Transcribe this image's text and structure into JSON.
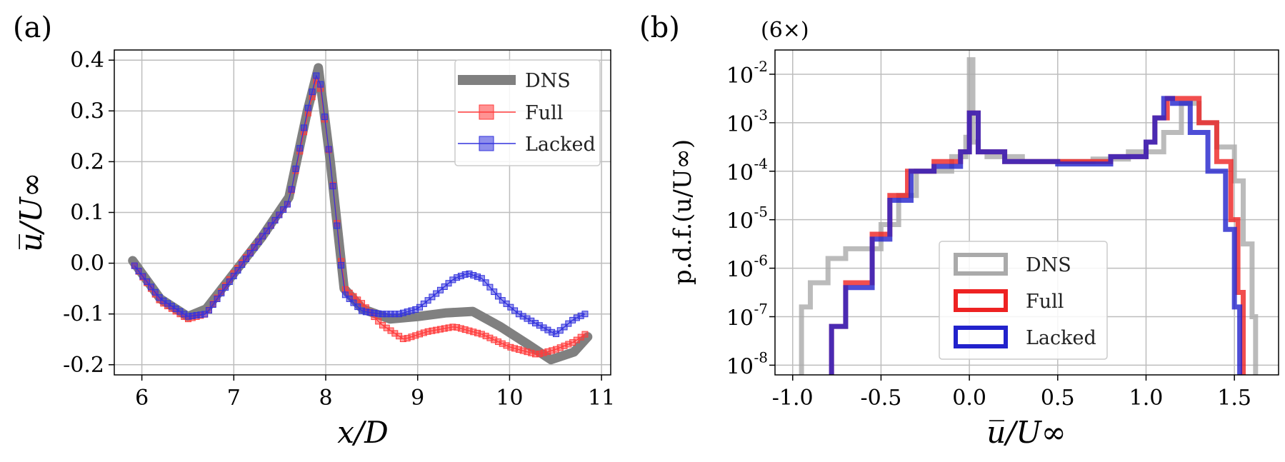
{
  "chart_data": [
    {
      "type": "line",
      "panel_label": "(a)",
      "xlabel": "x/D",
      "ylabel": "u̅/U∞",
      "xlim": [
        5.7,
        11.1
      ],
      "ylim": [
        -0.22,
        0.42
      ],
      "xticks": [
        6,
        7,
        8,
        9,
        10,
        11
      ],
      "xtick_labels": [
        "6",
        "7",
        "8",
        "9",
        "10",
        "11"
      ],
      "yticks": [
        -0.2,
        -0.1,
        0.0,
        0.1,
        0.2,
        0.3,
        0.4
      ],
      "ytick_labels": [
        "-0.2",
        "-0.1",
        "0.0",
        "0.1",
        "0.2",
        "0.3",
        "0.4"
      ],
      "grid": true,
      "legend_position": "top-right",
      "series": [
        {
          "name": "DNS",
          "color": "#808080",
          "style": "thick-line",
          "x": [
            5.9,
            6.2,
            6.5,
            6.7,
            7.0,
            7.3,
            7.6,
            7.8,
            7.92,
            8.05,
            8.2,
            8.4,
            8.7,
            9.0,
            9.3,
            9.6,
            9.9,
            10.2,
            10.45,
            10.7,
            10.85
          ],
          "y": [
            0.005,
            -0.07,
            -0.105,
            -0.09,
            -0.02,
            0.05,
            0.13,
            0.3,
            0.385,
            0.2,
            -0.05,
            -0.09,
            -0.11,
            -0.105,
            -0.098,
            -0.095,
            -0.125,
            -0.16,
            -0.19,
            -0.175,
            -0.145
          ]
        },
        {
          "name": "Full",
          "color": "#ff3b3b",
          "style": "square-markers",
          "x": [
            5.92,
            6.2,
            6.5,
            6.7,
            7.0,
            7.3,
            7.6,
            7.8,
            7.92,
            8.05,
            8.2,
            8.4,
            8.6,
            8.85,
            9.1,
            9.4,
            9.7,
            10.0,
            10.3,
            10.5,
            10.7,
            10.82
          ],
          "y": [
            -0.005,
            -0.075,
            -0.11,
            -0.1,
            -0.02,
            0.05,
            0.12,
            0.29,
            0.375,
            0.2,
            -0.05,
            -0.08,
            -0.12,
            -0.15,
            -0.135,
            -0.125,
            -0.14,
            -0.165,
            -0.18,
            -0.17,
            -0.155,
            -0.14
          ]
        },
        {
          "name": "Lacked",
          "color": "#3333dd",
          "style": "square-markers",
          "x": [
            5.92,
            6.2,
            6.5,
            6.7,
            7.0,
            7.3,
            7.6,
            7.8,
            7.92,
            8.05,
            8.2,
            8.4,
            8.6,
            8.8,
            9.0,
            9.2,
            9.4,
            9.55,
            9.7,
            9.9,
            10.1,
            10.3,
            10.5,
            10.6,
            10.7,
            10.82
          ],
          "y": [
            -0.005,
            -0.07,
            -0.105,
            -0.1,
            -0.025,
            0.05,
            0.12,
            0.3,
            0.385,
            0.2,
            -0.06,
            -0.095,
            -0.1,
            -0.1,
            -0.09,
            -0.06,
            -0.03,
            -0.02,
            -0.03,
            -0.07,
            -0.1,
            -0.12,
            -0.14,
            -0.125,
            -0.11,
            -0.1
          ]
        }
      ]
    },
    {
      "type": "line",
      "panel_label": "(b)",
      "annotation": "(6×)",
      "xlabel": "u̅/U∞",
      "ylabel": "p.d.f.(u/U∞)",
      "xlim": [
        -1.1,
        1.75
      ],
      "ylim_log10": [
        -8.2,
        -1.5
      ],
      "yscale": "log",
      "xticks": [
        -1.0,
        -0.5,
        0.0,
        0.5,
        1.0,
        1.5
      ],
      "xtick_labels": [
        "-1.0",
        "-0.5",
        "0.0",
        "0.5",
        "1.0",
        "1.5"
      ],
      "yticks_log10": [
        -8,
        -7,
        -6,
        -5,
        -4,
        -3,
        -2
      ],
      "ytick_labels": [
        "-8",
        "-7",
        "-6",
        "-5",
        "-4",
        "-3",
        "-2"
      ],
      "ytick_base": "10",
      "grid": true,
      "legend_position": "bottom-center",
      "series": [
        {
          "name": "DNS",
          "color": "#aaaaaa",
          "x": [
            -0.97,
            -0.95,
            -0.9,
            -0.8,
            -0.7,
            -0.5,
            -0.4,
            -0.3,
            -0.1,
            -0.02,
            0.0,
            0.02,
            0.05,
            0.1,
            0.3,
            0.5,
            0.7,
            0.9,
            1.1,
            1.2,
            1.3,
            1.4,
            1.5,
            1.55,
            1.6,
            1.62
          ],
          "log10_pdf": [
            -8.3,
            -6.8,
            -6.3,
            -5.8,
            -5.6,
            -5.1,
            -4.5,
            -4.0,
            -3.7,
            -3.3,
            -1.7,
            -3.4,
            -3.6,
            -3.7,
            -3.8,
            -3.8,
            -3.75,
            -3.6,
            -3.2,
            -2.6,
            -3.0,
            -3.5,
            -4.2,
            -5.5,
            -7.0,
            -8.3
          ]
        },
        {
          "name": "Full",
          "color": "#ee2222",
          "x": [
            -0.8,
            -0.78,
            -0.7,
            -0.55,
            -0.45,
            -0.35,
            -0.2,
            -0.05,
            0.0,
            0.05,
            0.2,
            0.5,
            0.8,
            1.0,
            1.05,
            1.12,
            1.2,
            1.3,
            1.4,
            1.48,
            1.52,
            1.55
          ],
          "log10_pdf": [
            -8.3,
            -7.2,
            -6.3,
            -5.3,
            -4.5,
            -4.0,
            -3.8,
            -3.6,
            -2.8,
            -3.6,
            -3.8,
            -3.8,
            -3.7,
            -3.4,
            -2.9,
            -2.5,
            -2.5,
            -3.0,
            -3.8,
            -5.0,
            -6.5,
            -8.3
          ]
        },
        {
          "name": "Lacked",
          "color": "#2222cc",
          "x": [
            -0.8,
            -0.78,
            -0.7,
            -0.55,
            -0.45,
            -0.33,
            -0.2,
            -0.05,
            0.0,
            0.05,
            0.2,
            0.5,
            0.8,
            1.0,
            1.05,
            1.1,
            1.15,
            1.25,
            1.35,
            1.45,
            1.5,
            1.53
          ],
          "log10_pdf": [
            -8.3,
            -7.2,
            -6.4,
            -5.4,
            -4.6,
            -4.0,
            -3.9,
            -3.6,
            -2.8,
            -3.6,
            -3.8,
            -3.85,
            -3.7,
            -3.4,
            -2.9,
            -2.5,
            -2.6,
            -3.2,
            -4.0,
            -5.2,
            -6.8,
            -8.3
          ]
        }
      ]
    }
  ]
}
